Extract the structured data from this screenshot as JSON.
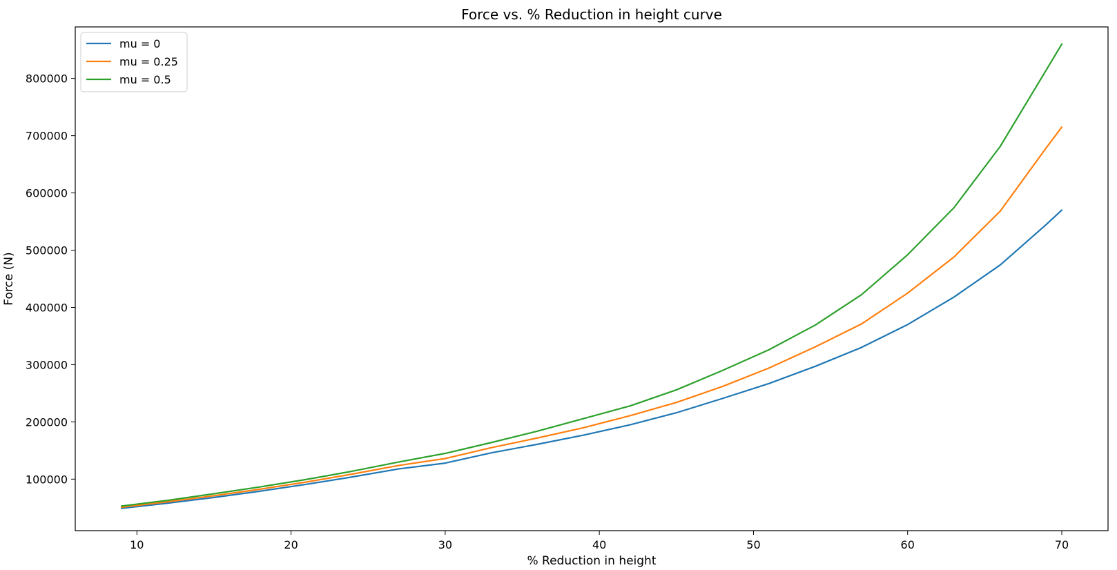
{
  "chart_data": {
    "type": "line",
    "title": "Force vs. % Reduction in height curve",
    "xlabel": "% Reduction in height",
    "ylabel": "Force (N)",
    "xlim": [
      6,
      73
    ],
    "ylim": [
      10000,
      890000
    ],
    "xticks": [
      10,
      20,
      30,
      40,
      50,
      60,
      70
    ],
    "yticks": [
      100000,
      200000,
      300000,
      400000,
      500000,
      600000,
      700000,
      800000
    ],
    "grid": false,
    "legend_position": "top-left",
    "x": [
      9,
      12,
      15,
      18,
      21,
      24,
      27,
      30,
      33,
      36,
      39,
      42,
      45,
      48,
      51,
      54,
      57,
      60,
      63,
      66,
      69,
      70
    ],
    "series": [
      {
        "name": "mu = 0",
        "color": "#1f77b4",
        "values": [
          49000,
          58000,
          68000,
          79000,
          91000,
          104000,
          118000,
          128000,
          146000,
          161000,
          177000,
          195000,
          216000,
          241000,
          267000,
          297000,
          330000,
          370000,
          418000,
          474000,
          545000,
          570000
        ]
      },
      {
        "name": "mu = 0.25",
        "color": "#ff7f0e",
        "values": [
          51000,
          60500,
          71000,
          82500,
          95000,
          109000,
          124000,
          136000,
          155000,
          172000,
          190000,
          211000,
          234000,
          262000,
          294000,
          331000,
          371000,
          425000,
          488000,
          568000,
          679000,
          715000
        ]
      },
      {
        "name": "mu = 0.5",
        "color": "#2ca02c",
        "values": [
          53000,
          63000,
          74500,
          86500,
          99500,
          114000,
          130000,
          145000,
          164000,
          184000,
          206000,
          228000,
          256000,
          290000,
          326000,
          369000,
          422000,
          492000,
          574000,
          681000,
          815000,
          860000
        ]
      }
    ]
  }
}
